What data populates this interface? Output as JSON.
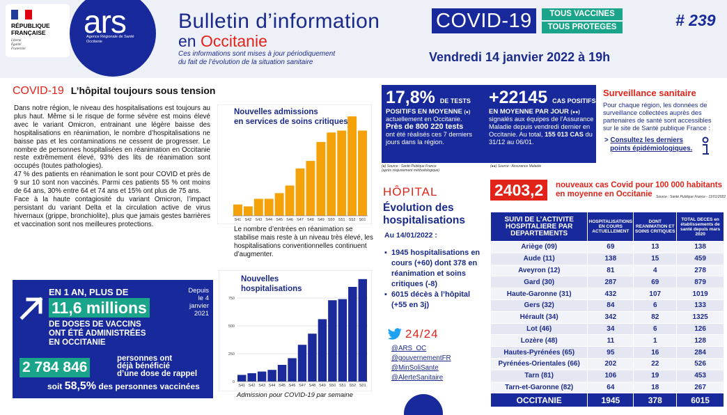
{
  "header": {
    "rf": {
      "line1": "RÉPUBLIQUE",
      "line2": "FRANÇAISE",
      "motto": "Liberté\nÉgalité\nFraternité"
    },
    "ars": {
      "word": "ars",
      "sub": "Agence Régionale de Santé\nOccitanie"
    },
    "title_line1": "Bulletin d’information",
    "covid_label": "COVID-19",
    "vacc_1": "TOUS VACCINES",
    "vacc_2": "TOUS PROTEGES",
    "issue": "# 239",
    "title_line2_prefix": "en",
    "title_line2_region": "Occitanie",
    "subtitle_1": "Ces informations sont mises à jour périodiquement",
    "subtitle_2": "du fait de l’évolution de la situation sanitaire",
    "date": "Vendredi 14 janvier 2022 à 19h"
  },
  "section": {
    "red": "COVID-19",
    "title": "L’hôpital toujours sous tension",
    "paragraphs": [
      "Dans notre région, le niveau des hospitalisations est toujours au plus haut. Même si le risque de forme sévère est moins élevé avec le variant Omicron, entrainant une légère baisse des hospitalisations en réanimation, le nombre d’hospitalisations ne baisse pas et les contaminations ne cessent de progresser. Le nombre de personnes hospitalisées en réanimation en Occitanie reste extrêmement élevé, 93% des lits de réanimation sont occupés (toutes pathologies).",
      "47 % des patients en réanimation le sont pour COVID et près de 9 sur 10 sont non vaccinés. Parmi ces patients 55 % ont moins de 64 ans, 30% entre 64 et 74 ans et 15% ont plus de 75 ans.",
      "Face à la haute contagiosité du variant Omicron, l’impact persistant du variant Delta et la circulation active de virus hivernaux (grippe, bronchiolite), plus que jamais gestes barrières et vaccination sont nos meilleures protections."
    ]
  },
  "chart_critical": {
    "title": "Nouvelles admissions\nen services de soins critiques",
    "caption": "Le nombre d’entrées en réanimation se stabilise mais reste à un niveau très élevé, les hospitalisations conventionnelles continuent d’augmenter."
  },
  "chart_hosp": {
    "title": "Nouvelles\nhospitalisations",
    "caption": "Admission pour COVID-19 par semaine"
  },
  "chart_data": [
    {
      "type": "bar",
      "title": "Nouvelles admissions en services de soins critiques",
      "categories": [
        "S41",
        "S42",
        "S43",
        "S44",
        "S45",
        "S46",
        "S47",
        "S48",
        "S49",
        "S50",
        "S51",
        "S52",
        "S01"
      ],
      "values": [
        12,
        10,
        18,
        18,
        24,
        32,
        50,
        58,
        78,
        88,
        90,
        105,
        90
      ],
      "color": "#f5a20a"
    },
    {
      "type": "bar",
      "title": "Nouvelles hospitalisations",
      "categories": [
        "S41",
        "S42",
        "S43",
        "S44",
        "S45",
        "S46",
        "S47",
        "S48",
        "S49",
        "S50",
        "S51",
        "S52",
        "S01"
      ],
      "values": [
        60,
        75,
        90,
        105,
        150,
        210,
        330,
        430,
        560,
        730,
        740,
        850,
        920
      ],
      "yticks": [
        0,
        250,
        500,
        750
      ],
      "ylim": [
        0,
        950
      ],
      "color": "#1a2a9b"
    }
  ],
  "vaccination": {
    "line1": "EN 1 AN, PLUS DE",
    "big": "11,6 millions",
    "line3": "DE DOSES DE VACCINS\nONT ÉTÉ ADMINISTRÉES\nEN OCCITANIE",
    "since": "Depuis\nle 4\njanvier\n2021",
    "booster_num": "2 784 846",
    "booster_lbl": "personnes ont\ndéjà bénéficié\nd’une dose de rappel",
    "pct_prefix": "soit",
    "pct": "58,5%",
    "pct_suffix": "des personnes vaccinées"
  },
  "kpi": {
    "a_big": "17,8%",
    "a_unit": "DE TESTS",
    "a_lbl": "POSITIFS EN MOYENNE",
    "a_txt1": "actuellement en Occitanie.",
    "a_txt2": "Près de 800 220 tests",
    "a_txt3": "ont été réalisés ces 7 derniers jours dans la région.",
    "b_big": "+22145",
    "b_unit": "CAS POSITIFS",
    "b_lbl": "EN MOYENNE PAR JOUR",
    "b_txt": "signalés aux équipes de l’Assurance Maladie depuis vendredi dernier en Occitanie. Au total,",
    "b_total": "155 013 CAS",
    "b_txt2": "du 31/12 au 06/01.",
    "src_a": "(●) Source : Santé Publique France\n(après réajustement méthodologique)",
    "src_b": "(●●) Source : Assurance Maladie"
  },
  "surveillance": {
    "title": "Surveillance sanitaire",
    "text": "Pour chaque région, les données de surveillance collectées auprès des partenaires de santé sont accessibles sur le site de Santé publique France :",
    "link_1": "Consultez les derniers",
    "link_2": "points épidémiologiques."
  },
  "hopital": {
    "title": "HÔPITAL",
    "subtitle": "Évolution des\nhospitalisations",
    "date": "Au 14/01/2022 :",
    "items": [
      "1945 hospitalisations en cours (+60) dont 378 en réanimation et soins critiques (-8)",
      "6015 décès à l’hôpital (+55 en 3j)"
    ],
    "tw_label": "24/24",
    "tw_links": [
      "@ARS_OC",
      "@gouvernementFR",
      "@MinSoliSante",
      "@AlerteSanitaire"
    ]
  },
  "rate": {
    "value": "2403,2",
    "text": "nouveaux cas Covid pour 100 000 habitants\nen moyenne en Occitanie",
    "source": "Source : Santé Publique France - 11/01/2022"
  },
  "table": {
    "headers": [
      "SUIVI DE L’ACTIVITE HOSPITALIERE PAR DEPARTEMENTS",
      "HOSPITALISATIONS EN COURS ACTUELLEMENT",
      "DONT REANIMATION ET SOINS CRITIQUES",
      "TOTAL DECES en établissements de santé depuis mars 2020"
    ],
    "rows": [
      [
        "Ariège (09)",
        "69",
        "13",
        "138"
      ],
      [
        "Aude (11)",
        "138",
        "15",
        "459"
      ],
      [
        "Aveyron (12)",
        "81",
        "4",
        "278"
      ],
      [
        "Gard (30)",
        "287",
        "69",
        "879"
      ],
      [
        "Haute-Garonne (31)",
        "432",
        "107",
        "1019"
      ],
      [
        "Gers (32)",
        "84",
        "6",
        "133"
      ],
      [
        "Hérault (34)",
        "342",
        "82",
        "1325"
      ],
      [
        "Lot (46)",
        "34",
        "6",
        "126"
      ],
      [
        "Lozère (48)",
        "11",
        "1",
        "128"
      ],
      [
        "Hautes-Pyrénées (65)",
        "95",
        "16",
        "284"
      ],
      [
        "Pyrénées-Orientales (66)",
        "202",
        "22",
        "526"
      ],
      [
        "Tarn (81)",
        "106",
        "19",
        "453"
      ],
      [
        "Tarn-et-Garonne (82)",
        "64",
        "18",
        "267"
      ]
    ],
    "total": [
      "OCCITANIE",
      "1945",
      "378",
      "6015"
    ]
  },
  "colors": {
    "navy": "#17299b",
    "red": "#e2231a",
    "green": "#1aa58a",
    "orange": "#f5a20a"
  }
}
